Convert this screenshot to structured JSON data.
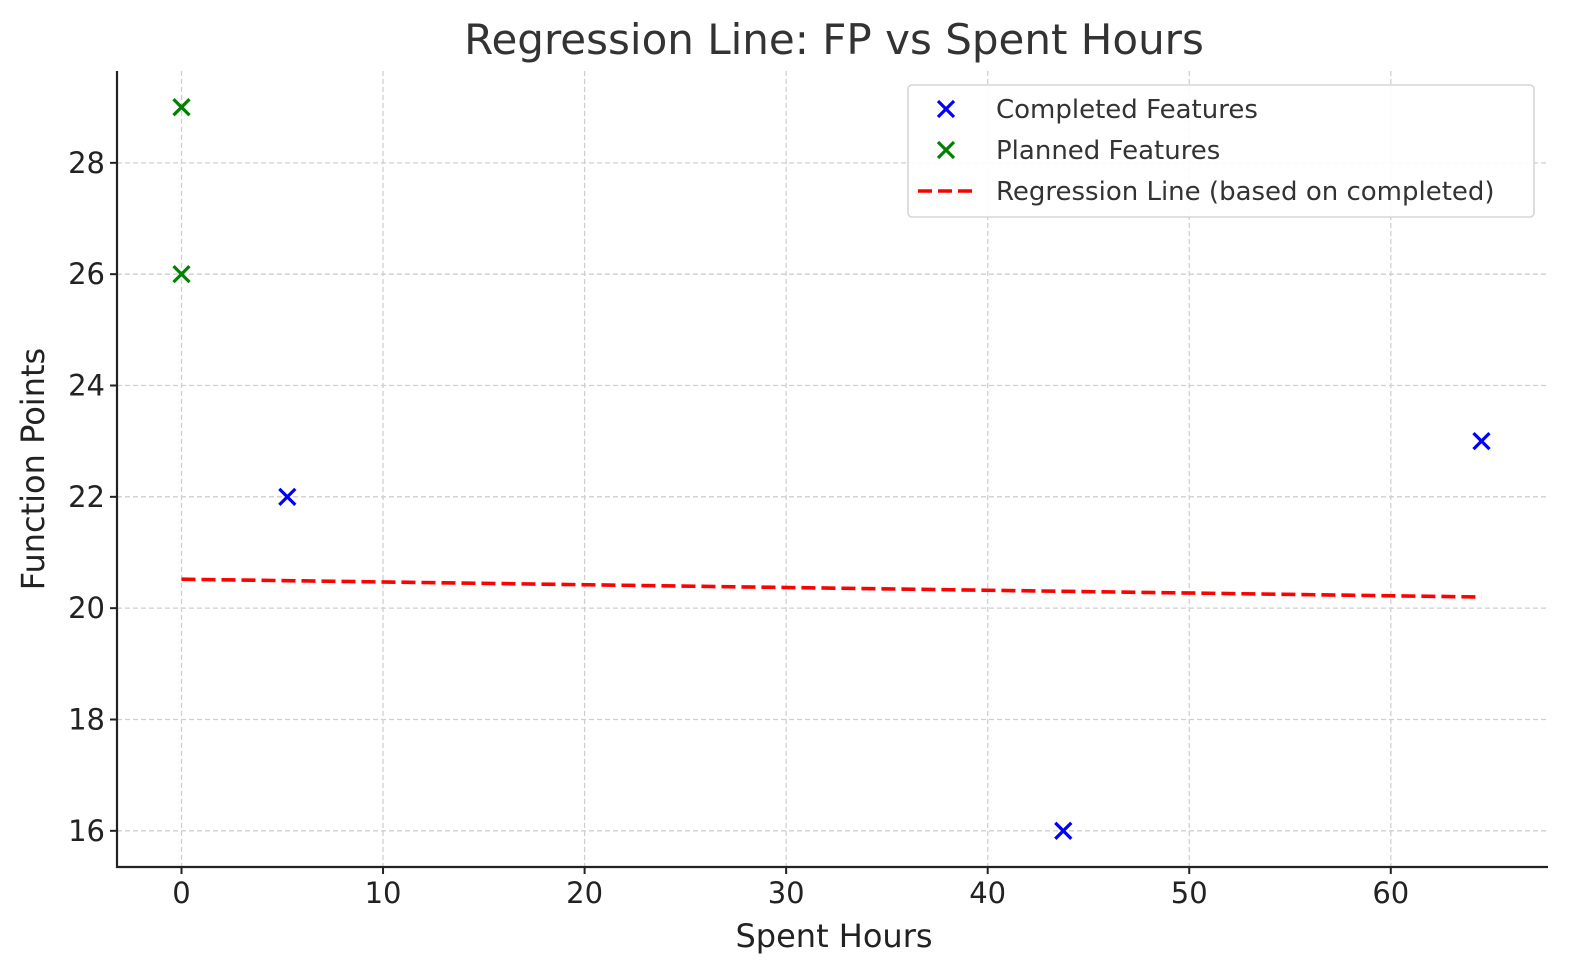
{
  "chart_data": {
    "type": "scatter",
    "title": "Regression Line: FP vs Spent Hours",
    "xlabel": "Spent Hours",
    "ylabel": "Function Points",
    "xlim": [
      -3.2,
      67.8
    ],
    "ylim": [
      15.35,
      29.65
    ],
    "xticks": [
      0,
      10,
      20,
      30,
      40,
      50,
      60
    ],
    "yticks": [
      16,
      18,
      20,
      22,
      24,
      26,
      28
    ],
    "grid": true,
    "legend_position": "top-right",
    "series": [
      {
        "name": "Completed Features",
        "kind": "scatter",
        "marker": "x",
        "color": "#0000ff",
        "points": [
          {
            "x": 5.25,
            "y": 22
          },
          {
            "x": 43.75,
            "y": 16
          },
          {
            "x": 64.5,
            "y": 23
          }
        ]
      },
      {
        "name": "Planned Features",
        "kind": "scatter",
        "marker": "x",
        "color": "#008000",
        "points": [
          {
            "x": 0,
            "y": 29
          },
          {
            "x": 0,
            "y": 26
          }
        ]
      },
      {
        "name": "Regression Line (based on completed)",
        "kind": "line",
        "style": "dashed",
        "color": "#ff0000",
        "points": [
          {
            "x": 0,
            "y": 20.52
          },
          {
            "x": 64.5,
            "y": 20.2
          }
        ]
      }
    ]
  }
}
